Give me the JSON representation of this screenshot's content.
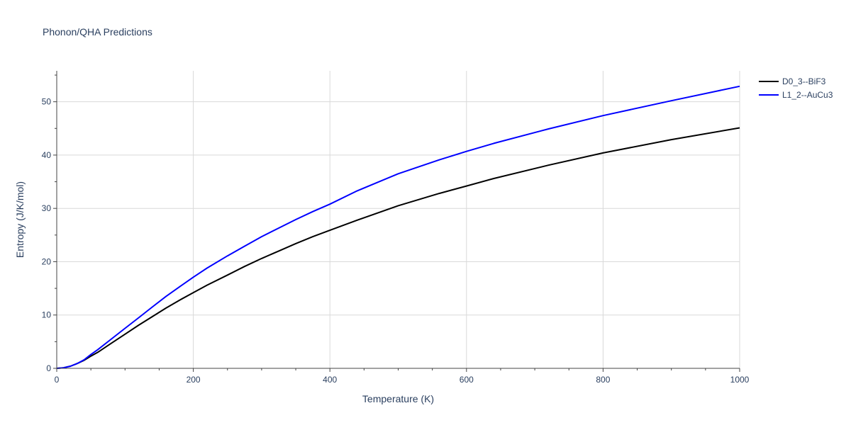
{
  "chart_data": {
    "type": "line",
    "title": "Phonon/QHA Predictions",
    "xlabel": "Temperature (K)",
    "ylabel": "Entropy (J/K/mol)",
    "xlim": [
      0,
      1000
    ],
    "ylim": [
      0,
      55.8
    ],
    "x_ticks": [
      0,
      200,
      400,
      600,
      800,
      1000
    ],
    "x_tick_labels": [
      "0",
      "200",
      "400",
      "600",
      "800",
      "1000"
    ],
    "y_ticks": [
      0,
      10,
      20,
      30,
      40,
      50
    ],
    "y_tick_labels": [
      "0",
      "10",
      "20",
      "30",
      "40",
      "50"
    ],
    "grid": true,
    "legend_position": "top-right",
    "series": [
      {
        "name": "D0_3--BiF3",
        "color": "#000000",
        "x": [
          0,
          10,
          20,
          30,
          40,
          50,
          60,
          80,
          100,
          120,
          140,
          160,
          180,
          200,
          220,
          250,
          275,
          300,
          325,
          350,
          375,
          400,
          440,
          500,
          560,
          600,
          640,
          720,
          800,
          900,
          1000
        ],
        "y": [
          0,
          0.1,
          0.4,
          0.9,
          1.5,
          2.3,
          3.0,
          4.7,
          6.4,
          8.1,
          9.7,
          11.3,
          12.8,
          14.2,
          15.6,
          17.5,
          19.1,
          20.6,
          22.0,
          23.4,
          24.7,
          25.9,
          27.8,
          30.5,
          32.8,
          34.2,
          35.6,
          38.1,
          40.4,
          42.9,
          45.1
        ]
      },
      {
        "name": "L1_2--AuCu3",
        "color": "#0000ff",
        "x": [
          0,
          10,
          20,
          30,
          40,
          50,
          60,
          80,
          100,
          120,
          140,
          160,
          180,
          200,
          220,
          250,
          275,
          300,
          325,
          350,
          375,
          400,
          440,
          500,
          560,
          600,
          640,
          720,
          800,
          900,
          1000
        ],
        "y": [
          0,
          0.1,
          0.4,
          0.9,
          1.6,
          2.6,
          3.5,
          5.5,
          7.5,
          9.5,
          11.5,
          13.5,
          15.3,
          17.1,
          18.8,
          21.1,
          22.9,
          24.7,
          26.3,
          27.9,
          29.4,
          30.8,
          33.3,
          36.5,
          39.1,
          40.7,
          42.2,
          44.9,
          47.4,
          50.2,
          52.9
        ]
      }
    ]
  }
}
